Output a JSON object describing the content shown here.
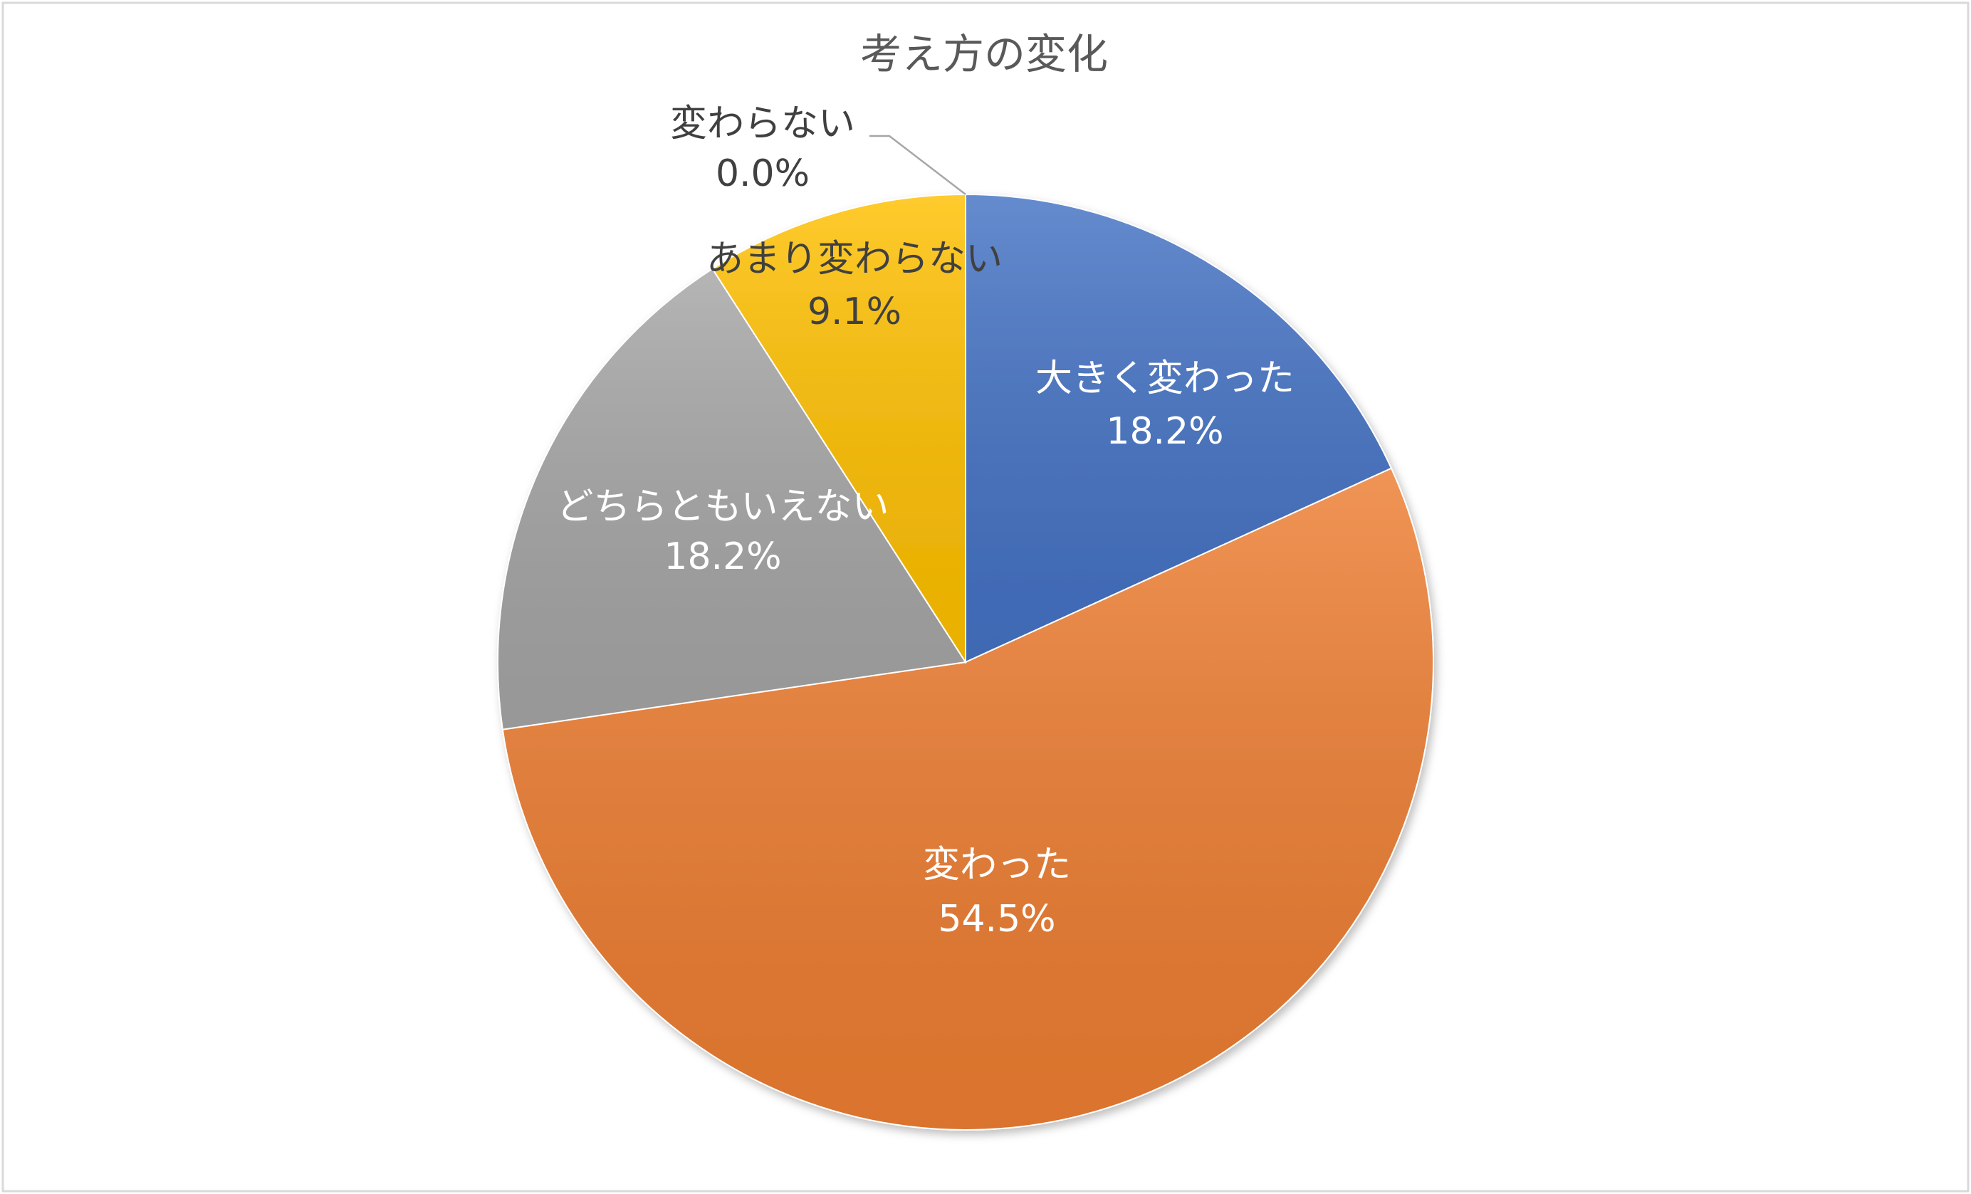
{
  "chart_data": {
    "type": "pie",
    "title": "考え方の変化",
    "categories": [
      "大きく変わった",
      "変わった",
      "どちらともいえない",
      "あまり変わらない",
      "変わらない"
    ],
    "values": [
      18.2,
      54.5,
      18.2,
      9.1,
      0.0
    ],
    "value_labels": [
      "18.2%",
      "54.5%",
      "18.2%",
      "9.1%",
      "0.0%"
    ],
    "colors": [
      "#4472c4",
      "#ed7d31",
      "#a5a5a5",
      "#ffc000",
      "#5b9bd5"
    ]
  }
}
